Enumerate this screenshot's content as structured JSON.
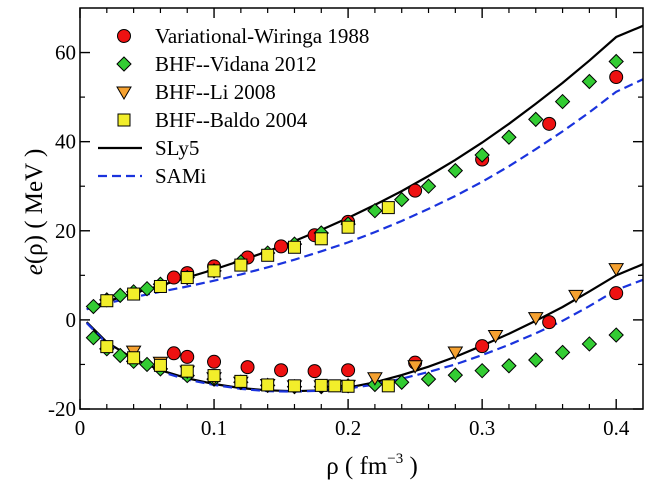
{
  "chart_data": {
    "type": "scatter",
    "xlabel": {
      "base": "ρ  ( fm",
      "sup": "−3",
      "close": " )"
    },
    "ylabel": {
      "italic": "e",
      "rest": "(ρ)  ( MeV )"
    },
    "xlim": [
      0,
      0.42
    ],
    "ylim": [
      -20,
      70
    ],
    "xticks": [
      0,
      0.1,
      0.2,
      0.3,
      0.4
    ],
    "xtick_labels": [
      "0",
      "0.1",
      "0.2",
      "0.3",
      "0.4"
    ],
    "yticks": [
      -20,
      0,
      20,
      40,
      60
    ],
    "ytick_labels": [
      "-20",
      "0",
      "20",
      "40",
      "60"
    ],
    "grid": false,
    "legend_position": "top-left",
    "series": [
      {
        "name": "Variational-Wiringa 1988",
        "marker": "circle",
        "color": "#ee1111",
        "points": [
          [
            0.07,
            9.5
          ],
          [
            0.08,
            10.5
          ],
          [
            0.1,
            12
          ],
          [
            0.125,
            14
          ],
          [
            0.15,
            16.5
          ],
          [
            0.175,
            19
          ],
          [
            0.2,
            22
          ],
          [
            0.25,
            29
          ],
          [
            0.3,
            36
          ],
          [
            0.35,
            44
          ],
          [
            0.4,
            54.5
          ],
          [
            0.07,
            -7.5
          ],
          [
            0.08,
            -8.3
          ],
          [
            0.1,
            -9.4
          ],
          [
            0.125,
            -10.6
          ],
          [
            0.15,
            -11.3
          ],
          [
            0.175,
            -11.5
          ],
          [
            0.2,
            -11.3
          ],
          [
            0.25,
            -9.6
          ],
          [
            0.3,
            -5.9
          ],
          [
            0.35,
            -0.5
          ],
          [
            0.4,
            6
          ]
        ]
      },
      {
        "name": "BHF--Vidana 2012",
        "marker": "diamond",
        "color": "#33cc33",
        "points": [
          [
            0.01,
            3
          ],
          [
            0.02,
            4.5
          ],
          [
            0.03,
            5.5
          ],
          [
            0.04,
            6.3
          ],
          [
            0.05,
            7
          ],
          [
            0.06,
            8
          ],
          [
            0.08,
            9.5
          ],
          [
            0.1,
            11
          ],
          [
            0.12,
            13
          ],
          [
            0.14,
            15
          ],
          [
            0.16,
            17
          ],
          [
            0.18,
            19.5
          ],
          [
            0.2,
            21.5
          ],
          [
            0.22,
            24.5
          ],
          [
            0.24,
            27
          ],
          [
            0.26,
            30
          ],
          [
            0.28,
            33.5
          ],
          [
            0.3,
            37
          ],
          [
            0.32,
            41
          ],
          [
            0.34,
            45
          ],
          [
            0.36,
            49
          ],
          [
            0.38,
            53.5
          ],
          [
            0.4,
            58
          ],
          [
            0.01,
            -4
          ],
          [
            0.02,
            -6.5
          ],
          [
            0.03,
            -8
          ],
          [
            0.04,
            -9.3
          ],
          [
            0.05,
            -10
          ],
          [
            0.06,
            -11
          ],
          [
            0.08,
            -12.5
          ],
          [
            0.1,
            -13.3
          ],
          [
            0.12,
            -14
          ],
          [
            0.14,
            -14.7
          ],
          [
            0.16,
            -15
          ],
          [
            0.18,
            -15
          ],
          [
            0.2,
            -14.8
          ],
          [
            0.22,
            -14.5
          ],
          [
            0.24,
            -14
          ],
          [
            0.26,
            -13.3
          ],
          [
            0.28,
            -12.4
          ],
          [
            0.3,
            -11.4
          ],
          [
            0.32,
            -10.3
          ],
          [
            0.34,
            -9
          ],
          [
            0.36,
            -7.3
          ],
          [
            0.38,
            -5.4
          ],
          [
            0.4,
            -3.4
          ]
        ]
      },
      {
        "name": "BHF--Li 2008",
        "marker": "triangle-down",
        "color": "#f5a130",
        "points": [
          [
            0.04,
            -7
          ],
          [
            0.06,
            -9.5
          ],
          [
            0.08,
            -11.5
          ],
          [
            0.1,
            -13
          ],
          [
            0.12,
            -14
          ],
          [
            0.14,
            -14.5
          ],
          [
            0.16,
            -14.8
          ],
          [
            0.18,
            -14.8
          ],
          [
            0.2,
            -14.7
          ],
          [
            0.22,
            -13
          ],
          [
            0.25,
            -10.3
          ],
          [
            0.28,
            -7.2
          ],
          [
            0.31,
            -3.5
          ],
          [
            0.34,
            0.5
          ],
          [
            0.37,
            5.5
          ],
          [
            0.4,
            11.5
          ]
        ]
      },
      {
        "name": "BHF--Baldo 2004",
        "marker": "square",
        "color": "#f2ee2a",
        "points": [
          [
            0.02,
            4.3
          ],
          [
            0.04,
            5.8
          ],
          [
            0.06,
            7.5
          ],
          [
            0.08,
            9.5
          ],
          [
            0.1,
            11
          ],
          [
            0.12,
            12.3
          ],
          [
            0.14,
            14.5
          ],
          [
            0.16,
            16.3
          ],
          [
            0.18,
            18.2
          ],
          [
            0.2,
            20.8
          ],
          [
            0.23,
            25.2
          ],
          [
            0.02,
            -6
          ],
          [
            0.04,
            -8.5
          ],
          [
            0.06,
            -10.2
          ],
          [
            0.08,
            -11.5
          ],
          [
            0.1,
            -12.5
          ],
          [
            0.12,
            -13.8
          ],
          [
            0.14,
            -14.6
          ],
          [
            0.16,
            -14.8
          ],
          [
            0.18,
            -14.7
          ],
          [
            0.19,
            -14.8
          ],
          [
            0.2,
            -14.9
          ],
          [
            0.23,
            -14.8
          ]
        ]
      },
      {
        "name": "SLy5",
        "line": "solid",
        "color": "#000000",
        "curves": [
          [
            [
              0.005,
              2.4
            ],
            [
              0.02,
              4.1
            ],
            [
              0.04,
              6.0
            ],
            [
              0.06,
              7.7
            ],
            [
              0.08,
              9.5
            ],
            [
              0.1,
              11.3
            ],
            [
              0.12,
              13.3
            ],
            [
              0.14,
              15.4
            ],
            [
              0.16,
              17.7
            ],
            [
              0.18,
              20.2
            ],
            [
              0.2,
              22.9
            ],
            [
              0.22,
              25.8
            ],
            [
              0.24,
              28.9
            ],
            [
              0.26,
              32.3
            ],
            [
              0.28,
              35.9
            ],
            [
              0.3,
              39.8
            ],
            [
              0.32,
              44.0
            ],
            [
              0.34,
              48.5
            ],
            [
              0.36,
              53.2
            ],
            [
              0.38,
              58.2
            ],
            [
              0.4,
              63.5
            ],
            [
              0.42,
              66.0
            ]
          ],
          [
            [
              0.005,
              -0.5
            ],
            [
              0.02,
              -5.0
            ],
            [
              0.04,
              -8.7
            ],
            [
              0.06,
              -11.3
            ],
            [
              0.08,
              -13.1
            ],
            [
              0.1,
              -14.4
            ],
            [
              0.12,
              -15.3
            ],
            [
              0.14,
              -15.8
            ],
            [
              0.16,
              -16.0
            ],
            [
              0.18,
              -15.8
            ],
            [
              0.2,
              -15.2
            ],
            [
              0.22,
              -14.0
            ],
            [
              0.24,
              -12.4
            ],
            [
              0.26,
              -10.5
            ],
            [
              0.28,
              -8.3
            ],
            [
              0.3,
              -5.8
            ],
            [
              0.32,
              -3.1
            ],
            [
              0.34,
              -0.2
            ],
            [
              0.36,
              2.9
            ],
            [
              0.38,
              6.4
            ],
            [
              0.4,
              10.0
            ],
            [
              0.42,
              12.5
            ]
          ]
        ]
      },
      {
        "name": "SAMi",
        "line": "dashed",
        "color": "#1a33dd",
        "curves": [
          [
            [
              0.005,
              2.4
            ],
            [
              0.02,
              3.7
            ],
            [
              0.04,
              5.1
            ],
            [
              0.06,
              6.3
            ],
            [
              0.08,
              7.5
            ],
            [
              0.1,
              8.8
            ],
            [
              0.12,
              10.2
            ],
            [
              0.14,
              11.8
            ],
            [
              0.16,
              13.5
            ],
            [
              0.18,
              15.4
            ],
            [
              0.2,
              17.4
            ],
            [
              0.22,
              19.7
            ],
            [
              0.24,
              22.2
            ],
            [
              0.26,
              24.9
            ],
            [
              0.28,
              27.8
            ],
            [
              0.3,
              31.0
            ],
            [
              0.32,
              34.5
            ],
            [
              0.34,
              38.3
            ],
            [
              0.36,
              42.3
            ],
            [
              0.38,
              46.6
            ],
            [
              0.4,
              51.2
            ],
            [
              0.42,
              54.0
            ]
          ],
          [
            [
              0.005,
              -0.7
            ],
            [
              0.02,
              -5.3
            ],
            [
              0.04,
              -9.0
            ],
            [
              0.06,
              -11.6
            ],
            [
              0.08,
              -13.4
            ],
            [
              0.1,
              -14.6
            ],
            [
              0.12,
              -15.5
            ],
            [
              0.14,
              -16.0
            ],
            [
              0.16,
              -16.1
            ],
            [
              0.18,
              -15.9
            ],
            [
              0.2,
              -15.4
            ],
            [
              0.22,
              -14.5
            ],
            [
              0.24,
              -13.2
            ],
            [
              0.26,
              -11.7
            ],
            [
              0.28,
              -10.0
            ],
            [
              0.3,
              -7.9
            ],
            [
              0.32,
              -5.6
            ],
            [
              0.34,
              -3.0
            ],
            [
              0.36,
              -0.2
            ],
            [
              0.38,
              3.1
            ],
            [
              0.4,
              6.7
            ],
            [
              0.42,
              9.0
            ]
          ]
        ]
      }
    ]
  }
}
